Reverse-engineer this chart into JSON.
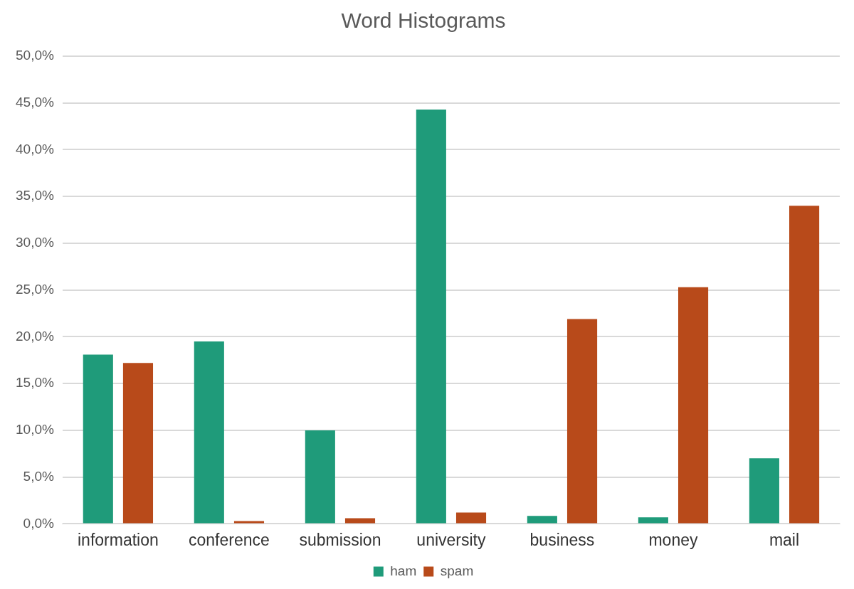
{
  "chart_data": {
    "type": "bar",
    "title": "Word Histograms",
    "categories": [
      "information",
      "conference",
      "submission",
      "university",
      "business",
      "money",
      "mail"
    ],
    "series": [
      {
        "name": "ham",
        "color": "#1f9b7a",
        "values": [
          18.1,
          19.5,
          10.0,
          44.3,
          0.85,
          0.7,
          7.0
        ]
      },
      {
        "name": "spam",
        "color": "#b84a1a",
        "values": [
          17.2,
          0.3,
          0.6,
          1.2,
          21.9,
          25.3,
          34.0
        ]
      }
    ],
    "ylim": [
      0,
      50
    ],
    "yticks": [
      {
        "value": 0,
        "label": "0,0%"
      },
      {
        "value": 5,
        "label": "5,0%"
      },
      {
        "value": 10,
        "label": "10,0%"
      },
      {
        "value": 15,
        "label": "15,0%"
      },
      {
        "value": 20,
        "label": "20,0%"
      },
      {
        "value": 25,
        "label": "25,0%"
      },
      {
        "value": 30,
        "label": "30,0%"
      },
      {
        "value": 35,
        "label": "35,0%"
      },
      {
        "value": 40,
        "label": "40,0%"
      },
      {
        "value": 45,
        "label": "45,0%"
      },
      {
        "value": 50,
        "label": "50,0%"
      }
    ],
    "grid": "y",
    "legend": "bottom"
  }
}
